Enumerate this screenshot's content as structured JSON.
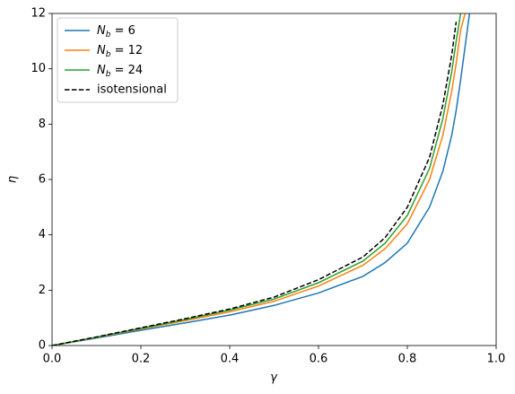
{
  "chart_data": {
    "type": "line",
    "x_label": "γ",
    "y_label": "η",
    "x": [
      0,
      0.1,
      0.2,
      0.3,
      0.4,
      0.5,
      0.6,
      0.7,
      0.75,
      0.8,
      0.85,
      0.88,
      0.9,
      0.91,
      0.92,
      0.93,
      0.94
    ],
    "series": [
      {
        "name": "Nb = 6",
        "color": "#1f77b4",
        "dashed": false,
        "values": [
          0,
          0.27,
          0.55,
          0.82,
          1.1,
          1.45,
          1.9,
          2.5,
          3.0,
          3.7,
          5.0,
          6.3,
          7.6,
          8.5,
          9.6,
          10.8,
          12
        ]
      },
      {
        "name": "Nb = 12",
        "color": "#ff7f0e",
        "dashed": false,
        "values": [
          0,
          0.29,
          0.6,
          0.9,
          1.22,
          1.6,
          2.15,
          2.9,
          3.5,
          4.4,
          6.0,
          7.6,
          9.2,
          10.2,
          11.4,
          12,
          null
        ]
      },
      {
        "name": "Nb = 24",
        "color": "#2ca02c",
        "dashed": false,
        "values": [
          0,
          0.3,
          0.62,
          0.94,
          1.28,
          1.68,
          2.27,
          3.05,
          3.7,
          4.7,
          6.4,
          8.2,
          9.9,
          11.0,
          12,
          null,
          null
        ]
      },
      {
        "name": "isotensional",
        "color": "#000000",
        "dashed": true,
        "values": [
          0,
          0.31,
          0.64,
          0.97,
          1.32,
          1.75,
          2.38,
          3.2,
          3.9,
          5.0,
          6.8,
          8.7,
          10.5,
          11.7,
          null,
          null,
          null
        ]
      }
    ],
    "xlim": [
      0,
      1
    ],
    "ylim": [
      0,
      12
    ],
    "xticks": [
      {
        "value": 0,
        "label": "0.0"
      },
      0.2,
      0.4,
      0.6,
      0.8,
      {
        "value": 1,
        "label": "1.0"
      }
    ],
    "yticks": [
      0,
      2,
      4,
      6,
      8,
      10,
      12
    ],
    "grid": false,
    "legend": "upper left"
  }
}
